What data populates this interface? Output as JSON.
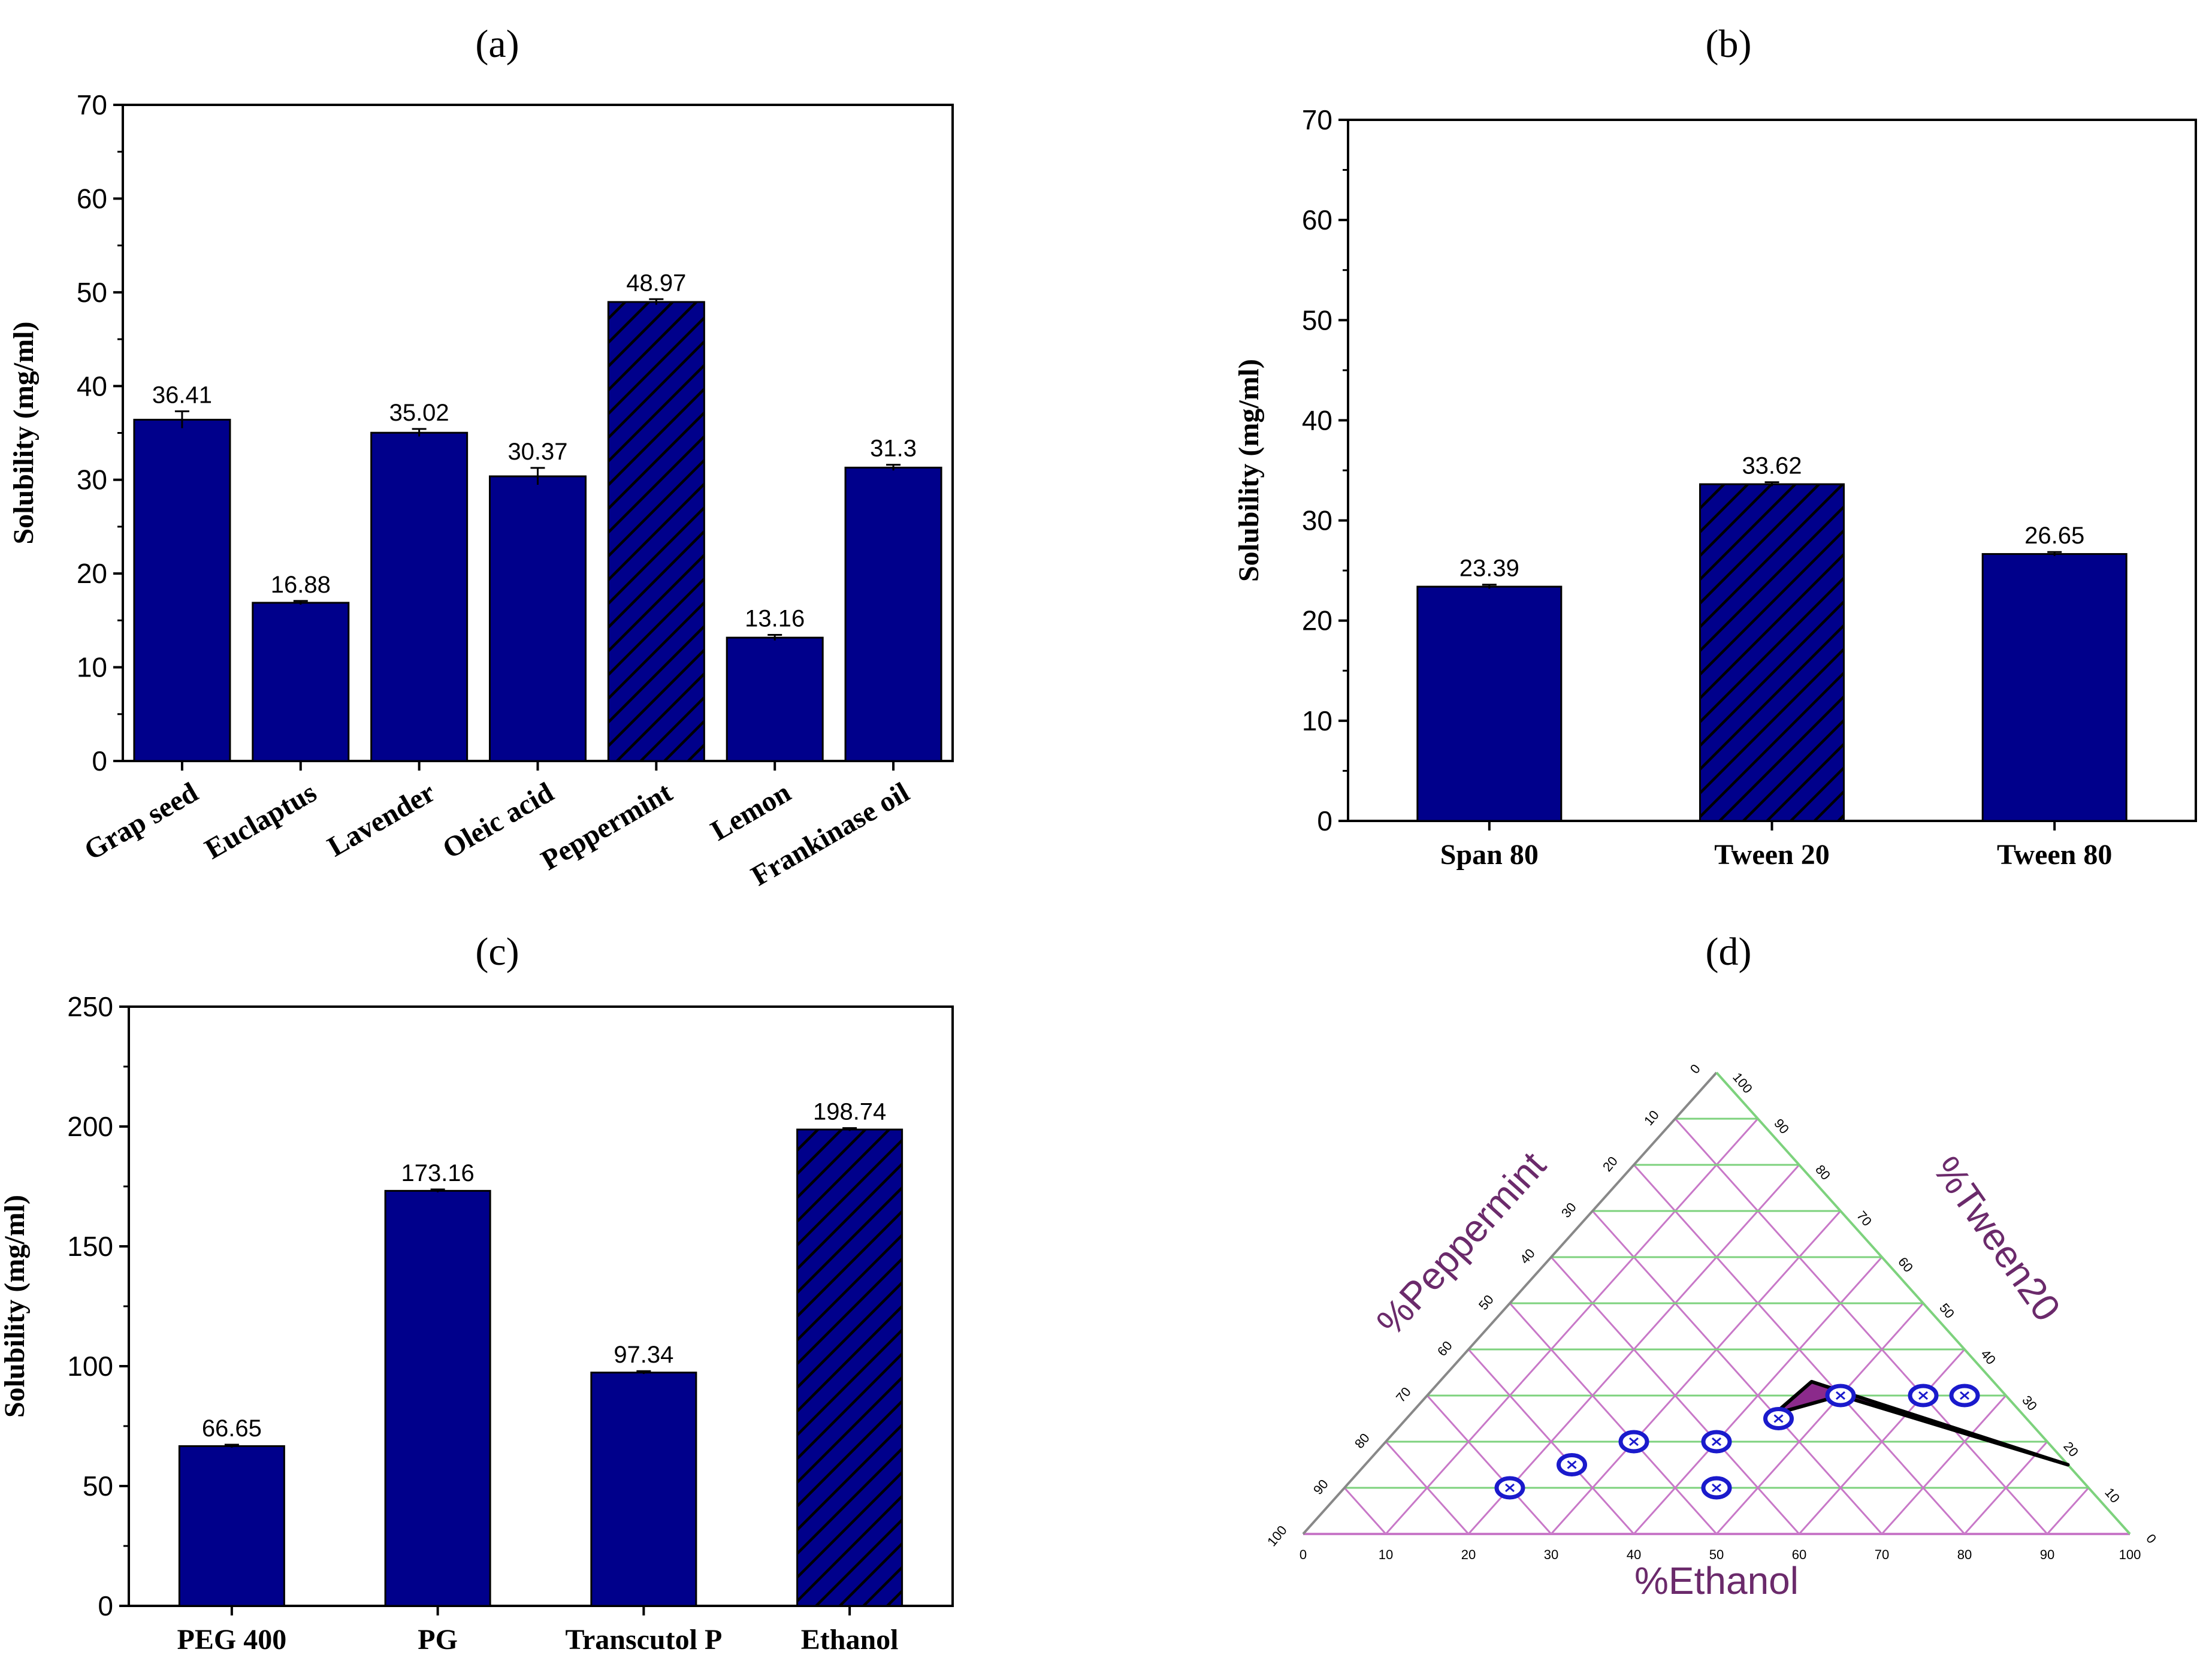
{
  "panels": {
    "a": "(a)",
    "b": "(b)",
    "c": "(c)",
    "d": "(d)"
  },
  "colors": {
    "bar_fill": "#00008b",
    "bar_stroke": "#000000",
    "highlight_hatch": "#000000",
    "ternary_region": "#8b2a8b",
    "ternary_point": "#1a1acc",
    "grid_purple": "#c878c8",
    "grid_green": "#7dd27d"
  },
  "chart_data": [
    {
      "id": "a",
      "type": "bar",
      "title": "(a)",
      "ylabel": "Solubility (mg/ml)",
      "xlabel": "",
      "ylim": [
        0,
        70
      ],
      "yticks": [
        0,
        10,
        20,
        30,
        40,
        50,
        60,
        70
      ],
      "categories": [
        "Grap seed",
        "Euclaptus",
        "Lavender",
        "Oleic acid",
        "Peppermint",
        "Lemon",
        "Frankinase oil"
      ],
      "values": [
        36.41,
        16.88,
        35.02,
        30.37,
        48.97,
        13.16,
        31.3
      ],
      "value_labels": [
        "36.41",
        "16.88",
        "35.02",
        "30.37",
        "48.97",
        "13.16",
        "31.3"
      ],
      "errors": [
        0.9,
        0.2,
        0.4,
        0.9,
        0.3,
        0.3,
        0.3
      ],
      "highlight": "Peppermint"
    },
    {
      "id": "b",
      "type": "bar",
      "title": "(b)",
      "ylabel": "Solubility (mg/ml)",
      "xlabel": "",
      "ylim": [
        0,
        70
      ],
      "yticks": [
        0,
        10,
        20,
        30,
        40,
        50,
        60,
        70
      ],
      "categories": [
        "Span 80",
        "Tween 20",
        "Tween 80"
      ],
      "values": [
        23.39,
        33.62,
        26.65
      ],
      "value_labels": [
        "23.39",
        "33.62",
        "26.65"
      ],
      "errors": [
        0.2,
        0.2,
        0.2
      ],
      "highlight": "Tween 20"
    },
    {
      "id": "c",
      "type": "bar",
      "title": "(c)",
      "ylabel": "Solubility (mg/ml)",
      "xlabel": "",
      "ylim": [
        0,
        250
      ],
      "yticks": [
        0,
        50,
        100,
        150,
        200,
        250
      ],
      "categories": [
        "PEG 400",
        "PG",
        "Transcutol P",
        "Ethanol"
      ],
      "values": [
        66.65,
        173.16,
        97.34,
        198.74
      ],
      "value_labels": [
        "66.65",
        "173.16",
        "97.34",
        "198.74"
      ],
      "errors": [
        0.6,
        0.6,
        0.6,
        0.6
      ],
      "highlight": "Ethanol"
    },
    {
      "id": "d",
      "type": "ternary",
      "title": "(d)",
      "axis_bottom": "%Ethanol",
      "axis_left": "%Peppermint",
      "axis_right": "%Tween20",
      "ticks": [
        0,
        10,
        20,
        30,
        40,
        50,
        60,
        70,
        80,
        90,
        100
      ],
      "points": [
        {
          "ethanol": 40,
          "peppermint": 40,
          "tween20": 20
        },
        {
          "ethanol": 45,
          "peppermint": 30,
          "tween20": 25
        },
        {
          "ethanol": 50,
          "peppermint": 20,
          "tween20": 30
        },
        {
          "ethanol": 60,
          "peppermint": 10,
          "tween20": 30
        },
        {
          "ethanol": 65,
          "peppermint": 5,
          "tween20": 30
        },
        {
          "ethanol": 30,
          "peppermint": 50,
          "tween20": 20
        },
        {
          "ethanol": 25,
          "peppermint": 60,
          "tween20": 15
        },
        {
          "ethanol": 20,
          "peppermint": 70,
          "tween20": 10
        },
        {
          "ethanol": 45,
          "peppermint": 45,
          "tween20": 10
        }
      ],
      "region": [
        {
          "ethanol": 44,
          "peppermint": 30,
          "tween20": 26
        },
        {
          "ethanol": 50,
          "peppermint": 20,
          "tween20": 30
        },
        {
          "ethanol": 85,
          "peppermint": 0,
          "tween20": 15
        },
        {
          "ethanol": 45,
          "peppermint": 22,
          "tween20": 33
        }
      ]
    }
  ]
}
